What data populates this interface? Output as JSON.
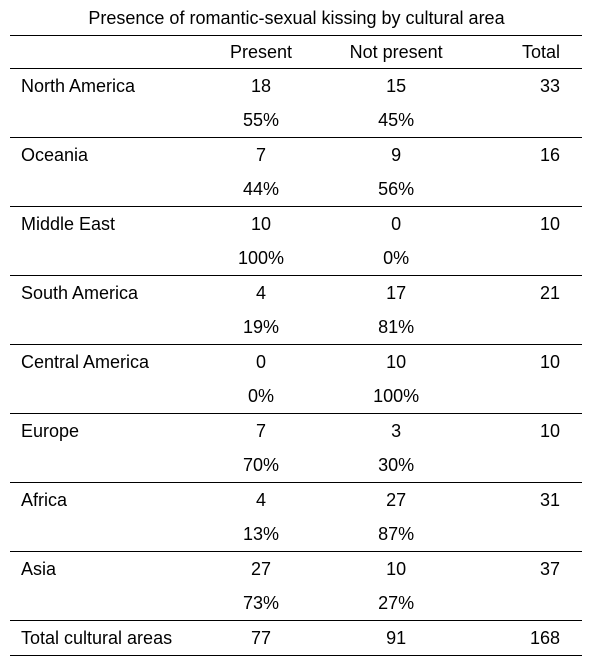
{
  "title": "Presence of romantic-sexual kissing by cultural area",
  "headers": {
    "label": "",
    "present": "Present",
    "not_present": "Not present",
    "total": "Total"
  },
  "rows": [
    {
      "area": "North America",
      "present": "18",
      "not_present": "15",
      "total": "33",
      "present_pct": "55%",
      "not_present_pct": "45%"
    },
    {
      "area": "Oceania",
      "present": "7",
      "not_present": "9",
      "total": "16",
      "present_pct": "44%",
      "not_present_pct": "56%"
    },
    {
      "area": "Middle East",
      "present": "10",
      "not_present": "0",
      "total": "10",
      "present_pct": "100%",
      "not_present_pct": "0%"
    },
    {
      "area": "South America",
      "present": "4",
      "not_present": "17",
      "total": "21",
      "present_pct": "19%",
      "not_present_pct": "81%"
    },
    {
      "area": "Central America",
      "present": "0",
      "not_present": "10",
      "total": "10",
      "present_pct": "0%",
      "not_present_pct": "100%"
    },
    {
      "area": "Europe",
      "present": "7",
      "not_present": "3",
      "total": "10",
      "present_pct": "70%",
      "not_present_pct": "30%"
    },
    {
      "area": "Africa",
      "present": "4",
      "not_present": "27",
      "total": "31",
      "present_pct": "13%",
      "not_present_pct": "87%"
    },
    {
      "area": "Asia",
      "present": "27",
      "not_present": "10",
      "total": "37",
      "present_pct": "73%",
      "not_present_pct": "27%"
    }
  ],
  "totals": {
    "label": "Total cultural areas",
    "present": "77",
    "not_present": "91",
    "total": "168"
  }
}
